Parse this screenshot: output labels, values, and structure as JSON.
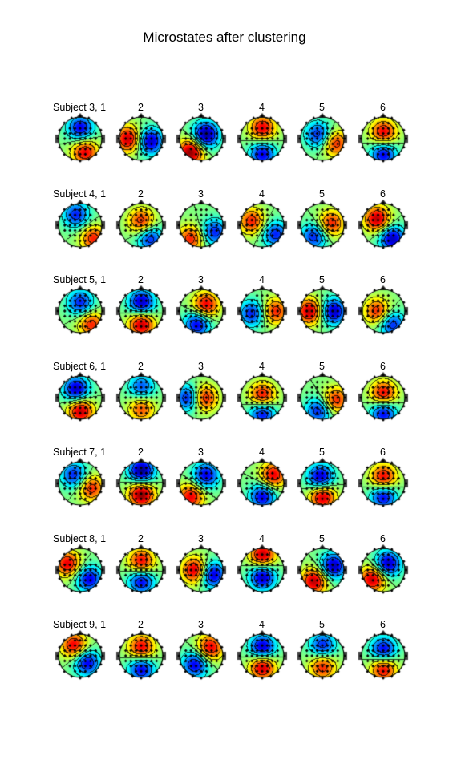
{
  "title": "Microstates after clustering",
  "subjects": [
    {
      "label": "Subject 3, 1",
      "maps": [
        {
          "p": [
            0.2,
            0.6
          ],
          "n": [
            0.0,
            -0.5
          ],
          "a": 0.8
        },
        {
          "p": [
            -0.6,
            0.0
          ],
          "n": [
            0.4,
            0.1
          ],
          "a": 0.9
        },
        {
          "p": [
            -0.5,
            0.6
          ],
          "n": [
            0.2,
            -0.2
          ],
          "a": 1.0
        },
        {
          "p": [
            0.0,
            -0.5
          ],
          "n": [
            0.0,
            0.7
          ],
          "a": 0.8
        },
        {
          "p": [
            0.6,
            0.2
          ],
          "n": [
            -0.2,
            -0.2
          ],
          "a": 0.7
        },
        {
          "p": [
            0.0,
            -0.3
          ],
          "n": [
            0.0,
            0.7
          ],
          "a": 0.8
        }
      ]
    },
    {
      "label": "Subject 4, 1",
      "maps": [
        {
          "p": [
            0.6,
            0.6
          ],
          "n": [
            -0.2,
            -0.5
          ],
          "a": 0.7
        },
        {
          "p": [
            0.0,
            -0.2
          ],
          "n": [
            0.4,
            0.6
          ],
          "a": 0.7
        },
        {
          "p": [
            -0.5,
            0.6
          ],
          "n": [
            0.6,
            0.3
          ],
          "a": 0.7
        },
        {
          "p": [
            -0.5,
            -0.2
          ],
          "n": [
            0.6,
            0.4
          ],
          "a": 0.7
        },
        {
          "p": [
            0.4,
            -0.1
          ],
          "n": [
            -0.4,
            0.5
          ],
          "a": 0.7
        },
        {
          "p": [
            -0.3,
            -0.3
          ],
          "n": [
            0.4,
            0.6
          ],
          "a": 0.9
        }
      ]
    },
    {
      "label": "Subject 5, 1",
      "maps": [
        {
          "p": [
            0.5,
            0.6
          ],
          "n": [
            0.0,
            -0.4
          ],
          "a": 0.7
        },
        {
          "p": [
            0.0,
            0.6
          ],
          "n": [
            0.0,
            -0.4
          ],
          "a": 0.9
        },
        {
          "p": [
            0.2,
            -0.3
          ],
          "n": [
            -0.2,
            0.6
          ],
          "a": 0.8
        },
        {
          "p": [
            0.6,
            0.0
          ],
          "n": [
            -0.5,
            0.1
          ],
          "a": 0.7
        },
        {
          "p": [
            -0.6,
            0.0
          ],
          "n": [
            0.5,
            0.0
          ],
          "a": 0.9
        },
        {
          "p": [
            -0.3,
            0.0
          ],
          "n": [
            0.4,
            0.6
          ],
          "a": 0.7
        }
      ]
    },
    {
      "label": "Subject 6, 1",
      "maps": [
        {
          "p": [
            0.0,
            0.6
          ],
          "n": [
            -0.2,
            -0.4
          ],
          "a": 0.9
        },
        {
          "p": [
            0.0,
            0.5
          ],
          "n": [
            0.0,
            -0.5
          ],
          "a": 0.6
        },
        {
          "p": [
            0.1,
            0.0
          ],
          "n": [
            -0.6,
            0.0
          ],
          "a": 0.8
        },
        {
          "p": [
            0.0,
            -0.1
          ],
          "n": [
            0.0,
            0.7
          ],
          "a": 0.8
        },
        {
          "p": [
            0.6,
            0.1
          ],
          "n": [
            -0.2,
            0.6
          ],
          "a": 0.7
        },
        {
          "p": [
            0.0,
            -0.2
          ],
          "n": [
            0.0,
            0.7
          ],
          "a": 0.8
        }
      ]
    },
    {
      "label": "Subject 7, 1",
      "maps": [
        {
          "p": [
            0.5,
            0.2
          ],
          "n": [
            -0.3,
            -0.4
          ],
          "a": 0.7
        },
        {
          "p": [
            0.0,
            0.5
          ],
          "n": [
            0.0,
            -0.6
          ],
          "a": 1.0
        },
        {
          "p": [
            -0.5,
            0.6
          ],
          "n": [
            0.2,
            -0.4
          ],
          "a": 0.8
        },
        {
          "p": [
            0.5,
            -0.4
          ],
          "n": [
            0.0,
            0.6
          ],
          "a": 0.8
        },
        {
          "p": [
            0.0,
            0.6
          ],
          "n": [
            -0.1,
            -0.3
          ],
          "a": 0.9
        },
        {
          "p": [
            0.0,
            -0.3
          ],
          "n": [
            0.0,
            0.6
          ],
          "a": 0.8
        }
      ]
    },
    {
      "label": "Subject 8, 1",
      "maps": [
        {
          "p": [
            -0.6,
            -0.3
          ],
          "n": [
            0.4,
            0.4
          ],
          "a": 0.8
        },
        {
          "p": [
            0.0,
            -0.4
          ],
          "n": [
            0.0,
            0.5
          ],
          "a": 0.8
        },
        {
          "p": [
            -0.3,
            0.0
          ],
          "n": [
            0.5,
            0.2
          ],
          "a": 0.9
        },
        {
          "p": [
            0.0,
            -0.7
          ],
          "n": [
            0.0,
            0.3
          ],
          "a": 0.9
        },
        {
          "p": [
            -0.4,
            0.5
          ],
          "n": [
            0.5,
            -0.2
          ],
          "a": 0.9
        },
        {
          "p": [
            -0.5,
            0.4
          ],
          "n": [
            0.2,
            -0.3
          ],
          "a": 0.9
        }
      ]
    },
    {
      "label": "Subject 9, 1",
      "maps": [
        {
          "p": [
            -0.3,
            -0.5
          ],
          "n": [
            0.3,
            0.3
          ],
          "a": 0.8
        },
        {
          "p": [
            0.0,
            -0.4
          ],
          "n": [
            0.0,
            0.6
          ],
          "a": 0.8
        },
        {
          "p": [
            0.4,
            -0.4
          ],
          "n": [
            -0.3,
            0.4
          ],
          "a": 0.8
        },
        {
          "p": [
            0.0,
            0.5
          ],
          "n": [
            0.0,
            -0.4
          ],
          "a": 0.9
        },
        {
          "p": [
            0.0,
            0.5
          ],
          "n": [
            0.0,
            -0.5
          ],
          "a": 0.7
        },
        {
          "p": [
            0.0,
            0.6
          ],
          "n": [
            0.0,
            -0.3
          ],
          "a": 0.8
        }
      ]
    }
  ],
  "column_labels": [
    "2",
    "3",
    "4",
    "5",
    "6"
  ]
}
